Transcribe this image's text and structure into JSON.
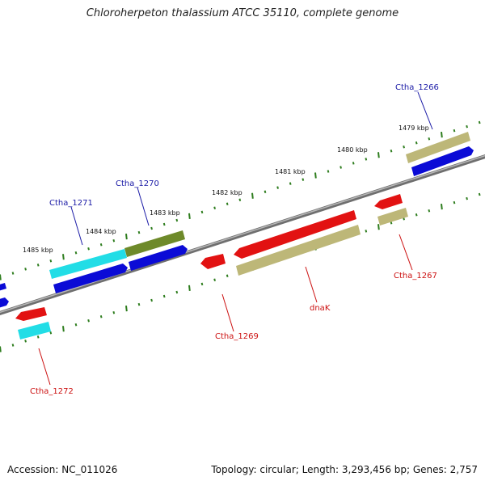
{
  "title": "Chloroherpeton thalassium ATCC 35110, complete genome",
  "footer": {
    "accession": "Accession: NC_011026",
    "summary": "Topology: circular; Length: 3,293,456 bp; Genes: 2,757"
  },
  "colors": {
    "backbone": "#8a8a8a",
    "tick": "#2e7d1e",
    "label_top": "#1a1aa6",
    "label_bottom": "#cc1111",
    "blue": "#0b0bd6",
    "cyan": "#22dde6",
    "olive": "#6e8a2a",
    "khaki": "#bdb778",
    "red": "#e21212"
  },
  "scale_labels": [
    "1485 kbp",
    "1484 kbp",
    "1483 kbp",
    "1482 kbp",
    "1481 kbp",
    "1480 kbp",
    "1479 kbp"
  ],
  "gene_labels_top": [
    "Ctha_1271",
    "Ctha_1270",
    "Ctha_1266"
  ],
  "gene_labels_bottom": [
    "Ctha_1272",
    "Ctha_1269",
    "dnaK",
    "Ctha_1267"
  ]
}
